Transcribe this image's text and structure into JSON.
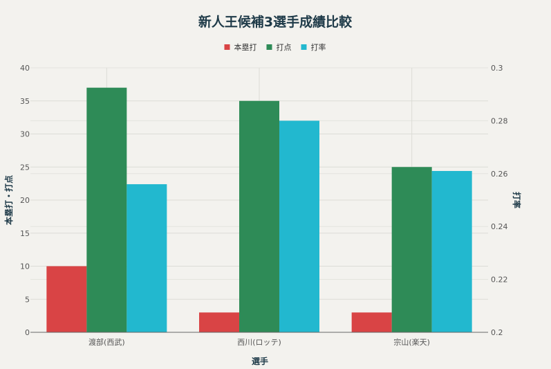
{
  "chart_data": {
    "type": "bar",
    "title": "新人王候補3選手成績比較",
    "categories": [
      "渡部(西武)",
      "西川(ロッテ)",
      "宗山(楽天)"
    ],
    "series": [
      {
        "name": "本塁打",
        "axis": "left",
        "values": [
          10,
          3,
          3
        ],
        "color": "#d94445"
      },
      {
        "name": "打点",
        "axis": "left",
        "values": [
          37,
          35,
          25
        ],
        "color": "#2e8b57"
      },
      {
        "name": "打率",
        "axis": "right",
        "values": [
          0.256,
          0.28,
          0.261
        ],
        "color": "#22b8cf"
      }
    ],
    "xlabel": "選手",
    "ylabel": "本塁打・打点",
    "y2label": "打率",
    "ylim": [
      0,
      40
    ],
    "y2lim": [
      0.2,
      0.3
    ],
    "yticks": [
      "0",
      "5",
      "10",
      "15",
      "20",
      "25",
      "30",
      "35",
      "40"
    ],
    "y2ticks": [
      "0.2",
      "0.22",
      "0.24",
      "0.26",
      "0.28",
      "0.3"
    ],
    "grid": true,
    "legend": "top-center"
  }
}
